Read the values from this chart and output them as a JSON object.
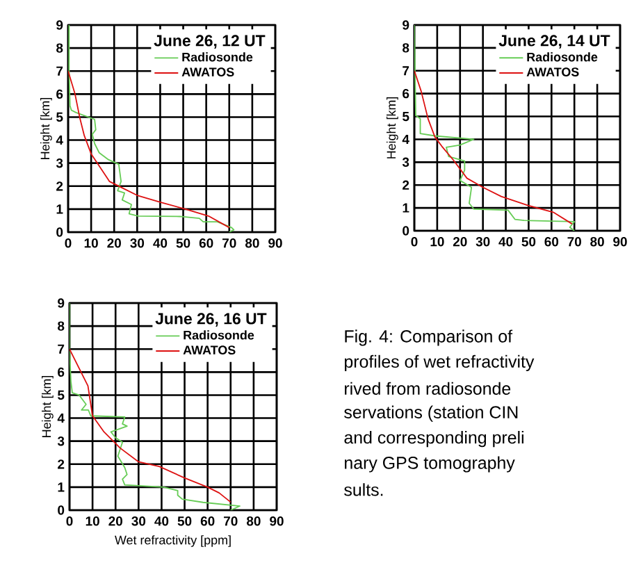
{
  "chart_data": [
    {
      "type": "line",
      "legend_title": "June 26, 12 UT",
      "ylabel": "Height [km]",
      "xlim": [
        0,
        90
      ],
      "ylim": [
        0,
        9
      ],
      "xticks": [
        0,
        10,
        20,
        30,
        40,
        50,
        60,
        70,
        80,
        90
      ],
      "yticks": [
        0,
        1,
        2,
        3,
        4,
        5,
        6,
        7,
        8,
        9
      ],
      "grid": true,
      "legend": "top right",
      "marker": "none",
      "line_style": "solid",
      "series": [
        {
          "name": "Radiosonde",
          "color": "#66cc55",
          "x": [
            0.4,
            0.4,
            0.8,
            1.4,
            3.4,
            11.5,
            12,
            10.5,
            11.5,
            13.5,
            17.5,
            22,
            23,
            21.5,
            24.5,
            23.5,
            27.5,
            26.5,
            30.5,
            48.7,
            57,
            58.7,
            64.8,
            71,
            72,
            70
          ],
          "values": [
            9,
            7.1,
            5.5,
            5.3,
            5.2,
            4.9,
            4.45,
            4.25,
            3.85,
            3.45,
            3.15,
            2.95,
            2.2,
            1.8,
            1.7,
            1.4,
            1.2,
            0.8,
            0.7,
            0.68,
            0.6,
            0.45,
            0.45,
            0.2,
            0.1,
            0
          ]
        },
        {
          "name": "AWATOS",
          "color": "#dd1111",
          "x": [
            0,
            3,
            5,
            7,
            10,
            14,
            18,
            24,
            30,
            40,
            51,
            61,
            70
          ],
          "values": [
            7,
            6,
            5,
            4.2,
            3.4,
            2.8,
            2.2,
            1.9,
            1.6,
            1.3,
            1,
            0.7,
            0.2
          ]
        }
      ]
    },
    {
      "type": "line",
      "legend_title": "June 26, 14 UT",
      "ylabel": "Height [km]",
      "xlim": [
        0,
        90
      ],
      "ylim": [
        0,
        9
      ],
      "xticks": [
        0,
        10,
        20,
        30,
        40,
        50,
        60,
        70,
        80,
        90
      ],
      "yticks": [
        0,
        1,
        2,
        3,
        4,
        5,
        6,
        7,
        8,
        9
      ],
      "grid": true,
      "legend": "top right",
      "marker": "none",
      "line_style": "solid",
      "series": [
        {
          "name": "Radiosonde",
          "color": "#66cc55",
          "x": [
            0,
            0.6,
            2.6,
            2.6,
            9,
            26,
            20,
            14,
            15,
            22,
            22,
            20,
            25,
            24,
            26,
            41,
            44,
            48,
            70,
            68,
            70
          ],
          "values": [
            9,
            5.05,
            4.9,
            4.25,
            4.15,
            4,
            3.75,
            3.65,
            3.25,
            3.05,
            2.65,
            2.2,
            1.9,
            1.2,
            0.95,
            0.9,
            0.5,
            0.45,
            0.4,
            0.15,
            0
          ]
        },
        {
          "name": "AWATOS",
          "color": "#dd1111",
          "x": [
            0,
            3,
            6,
            9,
            12,
            17,
            23,
            30,
            38,
            50,
            61,
            69
          ],
          "values": [
            7,
            6.1,
            4.9,
            4.1,
            3.7,
            3.1,
            2.3,
            1.9,
            1.5,
            1.1,
            0.8,
            0.3
          ]
        }
      ]
    },
    {
      "type": "line",
      "legend_title": "June 26, 16 UT",
      "ylabel": "Height [km]",
      "xlabel": "Wet refractivity [ppm]",
      "xlim": [
        0,
        90
      ],
      "ylim": [
        0,
        9
      ],
      "xticks": [
        0,
        10,
        20,
        30,
        40,
        50,
        60,
        70,
        80,
        90
      ],
      "yticks": [
        0,
        1,
        2,
        3,
        4,
        5,
        6,
        7,
        8,
        9
      ],
      "grid": true,
      "legend": "top right",
      "marker": "none",
      "line_style": "solid",
      "series": [
        {
          "name": "Radiosonde",
          "color": "#66cc55",
          "x": [
            0,
            0,
            0.6,
            1.2,
            4.2,
            7.2,
            5.2,
            8.2,
            9.2,
            24,
            23,
            25,
            18,
            20,
            23,
            21,
            24,
            25,
            23,
            24,
            41,
            47,
            47,
            49,
            58,
            74,
            70
          ],
          "values": [
            9,
            7,
            5.6,
            5.1,
            5,
            4.6,
            4.35,
            4.35,
            4.1,
            4.05,
            3.75,
            3.65,
            3.4,
            3.15,
            2.95,
            2.35,
            1.85,
            1.55,
            1.35,
            1.1,
            1,
            0.85,
            0.65,
            0.48,
            0.34,
            0.18,
            0
          ]
        },
        {
          "name": "AWATOS",
          "color": "#dd1111",
          "x": [
            0,
            4,
            8,
            10,
            15,
            22,
            30,
            39,
            50,
            60,
            65,
            70
          ],
          "values": [
            7,
            6.2,
            5.4,
            4.1,
            3.4,
            2.7,
            2.1,
            1.9,
            1.4,
            1,
            0.75,
            0.35
          ]
        }
      ]
    },
    {
      "type": "other",
      "annotations": [
        "Fig. 4: Comparison of",
        "profiles of wet refractivity",
        "rived from radiosonde",
        "servations (station CIN",
        "and corresponding preli",
        "nary GPS tomography",
        "sults."
      ]
    }
  ]
}
